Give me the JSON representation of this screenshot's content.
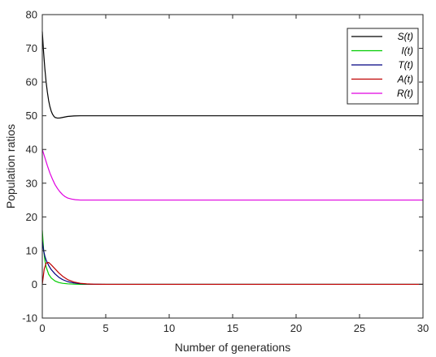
{
  "chart_data": {
    "type": "line",
    "title": "",
    "xlabel": "Number of generations",
    "ylabel": "Population ratios",
    "xlim": [
      0,
      30
    ],
    "ylim": [
      -10,
      80
    ],
    "xticks": [
      0,
      5,
      10,
      15,
      20,
      25,
      30
    ],
    "yticks": [
      -10,
      0,
      10,
      20,
      30,
      40,
      50,
      60,
      70,
      80
    ],
    "grid": false,
    "legend_position": "top-right",
    "series": [
      {
        "name": "S(t)",
        "color": "#000000",
        "x": [
          0,
          0.1,
          0.2,
          0.3,
          0.4,
          0.5,
          0.6,
          0.7,
          0.8,
          0.9,
          1.0,
          1.2,
          1.4,
          1.6,
          1.8,
          2.0,
          2.5,
          3,
          4,
          5,
          7,
          10,
          15,
          20,
          25,
          30
        ],
        "y": [
          75,
          69,
          64,
          60,
          57,
          54.5,
          52.7,
          51.4,
          50.5,
          49.9,
          49.5,
          49.3,
          49.35,
          49.5,
          49.65,
          49.8,
          49.95,
          50,
          50,
          50,
          50,
          50,
          50,
          50,
          50,
          50
        ]
      },
      {
        "name": "I(t)",
        "color": "#00cc00",
        "x": [
          0,
          0.1,
          0.2,
          0.3,
          0.5,
          0.7,
          1.0,
          1.3,
          1.6,
          2.0,
          2.5,
          3,
          4,
          5,
          10,
          15,
          20,
          25,
          30
        ],
        "y": [
          16,
          10.5,
          7.2,
          5.2,
          3.0,
          1.9,
          1.0,
          0.55,
          0.3,
          0.15,
          0.06,
          0.02,
          0,
          0,
          0,
          0,
          0,
          0,
          0
        ]
      },
      {
        "name": "T(t)",
        "color": "#000080",
        "x": [
          0,
          0.1,
          0.2,
          0.3,
          0.5,
          0.7,
          1.0,
          1.3,
          1.6,
          2.0,
          2.5,
          3,
          3.5,
          4,
          5,
          10,
          15,
          20,
          25,
          30
        ],
        "y": [
          13,
          10,
          8.4,
          7.2,
          5.6,
          4.4,
          3.1,
          2.1,
          1.4,
          0.8,
          0.4,
          0.18,
          0.08,
          0.03,
          0,
          0,
          0,
          0,
          0,
          0
        ]
      },
      {
        "name": "A(t)",
        "color": "#c00000",
        "x": [
          0,
          0.15,
          0.3,
          0.5,
          0.7,
          1.0,
          1.3,
          1.6,
          2.0,
          2.5,
          3,
          3.5,
          4,
          5,
          10,
          15,
          20,
          25,
          30
        ],
        "y": [
          0,
          4.5,
          6.3,
          6.5,
          5.8,
          4.6,
          3.4,
          2.4,
          1.4,
          0.7,
          0.3,
          0.13,
          0.05,
          0,
          0,
          0,
          0,
          0,
          0
        ]
      },
      {
        "name": "R(t)",
        "color": "#e000e0",
        "x": [
          0,
          0.2,
          0.4,
          0.6,
          0.8,
          1.0,
          1.2,
          1.4,
          1.6,
          1.8,
          2.0,
          2.3,
          2.6,
          3,
          4,
          5,
          10,
          15,
          20,
          25,
          30
        ],
        "y": [
          40,
          37.6,
          35.2,
          33.0,
          31.2,
          29.6,
          28.4,
          27.4,
          26.6,
          26.0,
          25.6,
          25.3,
          25.1,
          25,
          25,
          25,
          25,
          25,
          25,
          25,
          25
        ]
      }
    ]
  }
}
